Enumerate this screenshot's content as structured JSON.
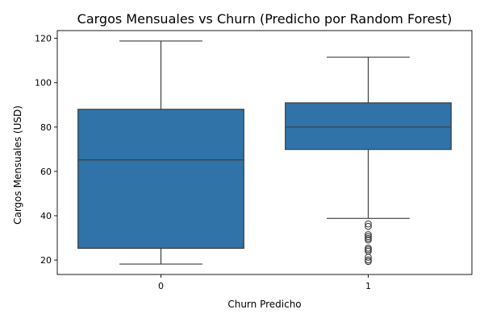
{
  "chart_data": {
    "type": "box",
    "title": "Cargos Mensuales vs Churn (Predicho por Random Forest)",
    "xlabel": "Churn Predicho",
    "ylabel": "Cargos Mensuales (USD)",
    "categories": [
      "0",
      "1"
    ],
    "ylim": [
      13.5,
      123.5
    ],
    "yticks": [
      20,
      40,
      60,
      80,
      100,
      120
    ],
    "boxes": [
      {
        "category": "0",
        "min": 18.2,
        "q1": 25.3,
        "median": 65.2,
        "q3": 88.0,
        "max": 118.8,
        "outliers": []
      },
      {
        "category": "1",
        "min": 38.8,
        "q1": 69.9,
        "median": 80.0,
        "q3": 90.9,
        "max": 111.5,
        "outliers": [
          36.3,
          35.2,
          31.5,
          30.6,
          29.8,
          29.1,
          25.4,
          24.7,
          24.0,
          21.3,
          20.1,
          19.4
        ]
      }
    ],
    "box_color": "#2f73a8",
    "line_color": "#3d3d3d",
    "grid": false,
    "legend": "none"
  }
}
